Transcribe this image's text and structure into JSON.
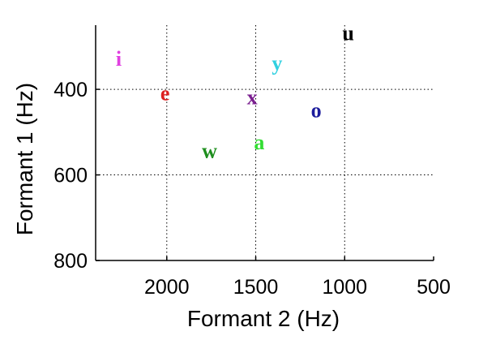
{
  "chart_data": {
    "type": "scatter",
    "title": "",
    "xlabel": "Formant 2 (Hz)",
    "ylabel": "Formant 1 (Hz)",
    "xlim": [
      2400,
      500
    ],
    "ylim": [
      250,
      800
    ],
    "x_reversed": true,
    "y_reversed": true,
    "xticks": [
      2000,
      1500,
      1000,
      500
    ],
    "yticks": [
      400,
      600,
      800
    ],
    "xtick_labels": [
      "2000",
      "1500",
      "1000",
      "500"
    ],
    "ytick_labels": [
      "400",
      "600",
      "800"
    ],
    "grid": true,
    "points": [
      {
        "label": "i",
        "x": 2270,
        "y": 330,
        "color": "#e040e0"
      },
      {
        "label": "e",
        "x": 2010,
        "y": 410,
        "color": "#dd2020"
      },
      {
        "label": "x",
        "x": 1520,
        "y": 420,
        "color": "#7a1f8f"
      },
      {
        "label": "y",
        "x": 1380,
        "y": 340,
        "color": "#30d0e0"
      },
      {
        "label": "o",
        "x": 1160,
        "y": 450,
        "color": "#1c1c9c"
      },
      {
        "label": "u",
        "x": 980,
        "y": 270,
        "color": "#000000"
      },
      {
        "label": "w",
        "x": 1760,
        "y": 545,
        "color": "#1f8f1f"
      },
      {
        "label": "a",
        "x": 1480,
        "y": 525,
        "color": "#33dd33"
      }
    ]
  }
}
